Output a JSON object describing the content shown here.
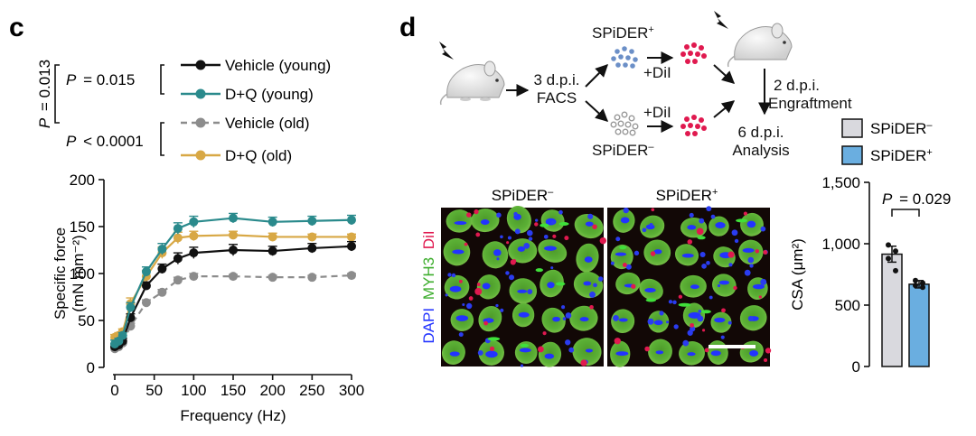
{
  "panel_c": {
    "letter": "c",
    "stats": {
      "p_outer_prefix": "P",
      "p_outer_value": "= 0.013",
      "p_young_prefix": "P",
      "p_young_value": "= 0.015",
      "p_old_prefix": "P",
      "p_old_value": "< 0.0001"
    }
  },
  "panel_d": {
    "letter": "d",
    "schematic": {
      "facs_line1": "3 d.p.i.",
      "facs_line2": "FACS",
      "spider_pos_label": "SPiDER",
      "spider_pos_sup": "+",
      "spider_neg_label": "SPiDER",
      "spider_neg_sup": "–",
      "dil_top": "+DiI",
      "dil_bottom": "+DiI",
      "engraftment_line1": "2 d.p.i.",
      "engraftment_line2": "Engraftment",
      "analysis_line1": "6 d.p.i.",
      "analysis_line2": "Analysis"
    },
    "micrographs": {
      "neg_title": "SPiDER",
      "neg_sup": "–",
      "pos_title": "SPiDER",
      "pos_sup": "+",
      "stain_dapi": "DAPI",
      "stain_myh3": "MYH3",
      "stain_dil": "DiI"
    },
    "legend": {
      "neg_label": "SPiDER",
      "neg_sup": "–",
      "pos_label": "SPiDER",
      "pos_sup": "+"
    },
    "p_prefix": "P",
    "p_value": "= 0.029"
  },
  "colors": {
    "vehicle_young": "#111111",
    "dq_young": "#2a8a8c",
    "vehicle_old": "#8c8c8c",
    "dq_old": "#d8a845",
    "spider_neg": "#d9d9de",
    "spider_pos": "#6aaee0",
    "dapi": "#2233ff",
    "myh3": "#3cad2c",
    "dil": "#e0194f"
  },
  "chart_data": [
    {
      "type": "line",
      "ylabel": "Specific force",
      "ylabel_unit": "(mN mm⁻²)",
      "xlabel": "Frequency (Hz)",
      "x": [
        0,
        5,
        10,
        20,
        40,
        60,
        80,
        100,
        150,
        200,
        250,
        300
      ],
      "xticks": [
        0,
        50,
        100,
        150,
        200,
        250,
        300
      ],
      "yticks": [
        0,
        50,
        100,
        150,
        200
      ],
      "xlim": [
        0,
        300
      ],
      "ylim": [
        0,
        200
      ],
      "legend_position": "top-left",
      "series": [
        {
          "name": "Vehicle (young)",
          "dashed": false,
          "values": [
            22,
            24,
            28,
            53,
            87,
            105,
            116,
            122,
            125,
            124,
            127,
            129
          ],
          "errors": [
            3,
            3,
            3,
            4,
            4,
            5,
            6,
            6,
            6,
            5,
            5,
            5
          ]
        },
        {
          "name": "D+Q (young)",
          "dashed": false,
          "values": [
            25,
            28,
            34,
            64,
            102,
            126,
            148,
            155,
            159,
            155,
            156,
            157
          ],
          "errors": [
            4,
            3,
            3,
            5,
            5,
            6,
            6,
            6,
            5,
            5,
            5,
            5
          ]
        },
        {
          "name": "Vehicle (old)",
          "dashed": true,
          "values": [
            20,
            22,
            26,
            44,
            69,
            80,
            93,
            97,
            97,
            96,
            96,
            98
          ],
          "errors": [
            2,
            2,
            2,
            3,
            3,
            3,
            3,
            3,
            2,
            2,
            2,
            2
          ]
        },
        {
          "name": "D+Q (old)",
          "dashed": false,
          "values": [
            32,
            34,
            38,
            68,
            97,
            122,
            138,
            140,
            141,
            139,
            139,
            139
          ],
          "errors": [
            3,
            3,
            3,
            6,
            6,
            6,
            6,
            5,
            4,
            4,
            3,
            3
          ]
        }
      ]
    },
    {
      "type": "bar",
      "ylabel": "CSA (μm²)",
      "categories": [
        "SPiDER–",
        "SPiDER+"
      ],
      "values": [
        915,
        670
      ],
      "errors": [
        65,
        30
      ],
      "points": [
        [
          990,
          940,
          880,
          780
        ],
        [
          700,
          680,
          660,
          645
        ]
      ],
      "yticks": [
        0,
        500,
        1000,
        1500
      ],
      "ytick_labels": [
        "0",
        "500",
        "1,000",
        "1,500"
      ],
      "ylim": [
        0,
        1500
      ]
    }
  ]
}
